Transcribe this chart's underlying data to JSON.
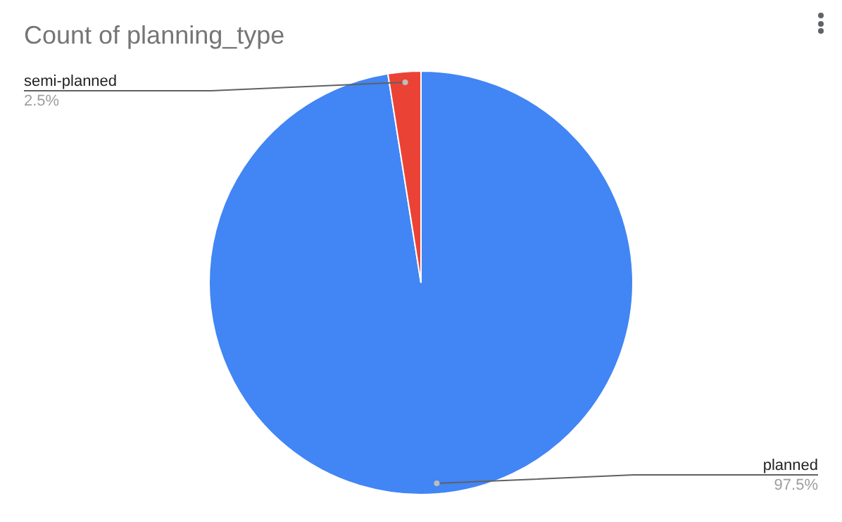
{
  "chart_data": {
    "type": "pie",
    "title": "Count of planning_type",
    "categories": [
      "planned",
      "semi-planned"
    ],
    "values": [
      97.5,
      2.5
    ],
    "colors": [
      "#4285f4",
      "#ea4335"
    ],
    "value_labels": [
      "97.5%",
      "2.5%"
    ],
    "legend": false
  }
}
